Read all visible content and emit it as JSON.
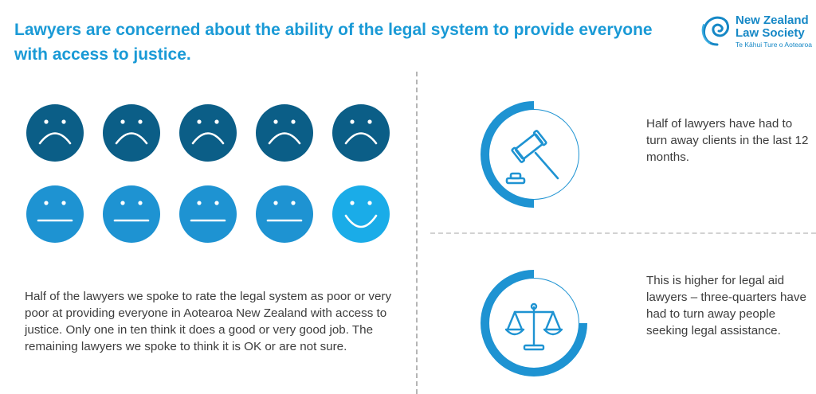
{
  "header": {
    "title": "Lawyers are concerned about the ability of the legal system to provide everyone with access to justice."
  },
  "logo": {
    "line1": "New Zealand",
    "line2": "Law Society",
    "line3": "Te Kāhui Ture o Aotearoa"
  },
  "colors": {
    "title": "#1a9ad6",
    "poor_face": "#0b5e87",
    "ok_face": "#1e93d2",
    "good_face": "#1aace8",
    "donut_fill": "#1e93d2",
    "donut_track": "#ffffff",
    "text": "#3d3d3d"
  },
  "chart_data": [
    {
      "type": "pictogram",
      "total": 10,
      "categories": [
        "poor or very poor",
        "OK or not sure",
        "good or very good"
      ],
      "values": [
        5,
        4,
        1
      ],
      "icons": [
        "sad-face-icon",
        "neutral-face-icon",
        "happy-face-icon"
      ]
    },
    {
      "type": "pie",
      "style": "donut",
      "values": [
        50,
        50
      ],
      "icon": "gavel-icon"
    },
    {
      "type": "pie",
      "style": "donut",
      "values": [
        75,
        25
      ],
      "icon": "scales-icon"
    }
  ],
  "texts": {
    "faces_caption": "Half of the lawyers we spoke to rate the legal system as poor or very poor at providing everyone in Aotearoa New Zealand with access to justice. Only one in ten think it does a good or very good job. The remaining lawyers we spoke to think it is OK or are not sure.",
    "stat_1": "Half of lawyers have had to turn away clients in the last 12 months.",
    "stat_2": "This is higher for legal aid lawyers – three-quarters have had to turn away people seeking legal assistance."
  }
}
